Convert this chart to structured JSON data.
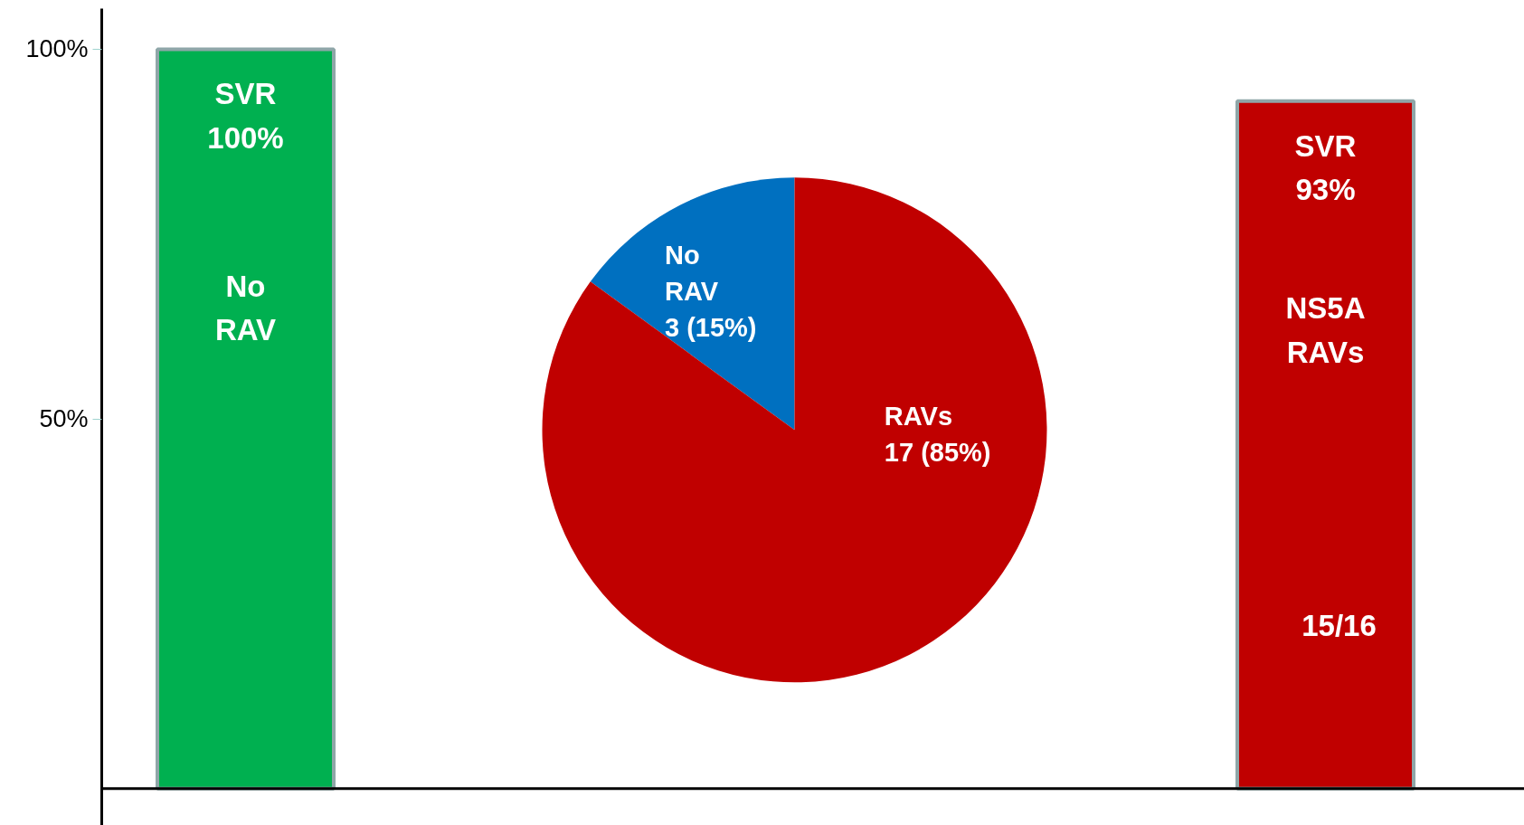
{
  "chart_data": [
    {
      "type": "bar",
      "categories": [
        null,
        null
      ],
      "values": [
        100,
        93
      ],
      "colors": [
        "#00b050",
        "#c00000"
      ],
      "value_labels": [
        "SVR\n100%",
        "SVR\n93%"
      ],
      "annotations": [
        "No\nRAV",
        "NS5A\nRAVs",
        "15/16"
      ],
      "ylim": [
        -5,
        105.5
      ],
      "yticks": [
        {
          "value": 50,
          "label": "50%"
        },
        {
          "value": 100,
          "label": "100%"
        }
      ],
      "grid": false
    },
    {
      "type": "pie",
      "categories": [
        "No\nRAV",
        "RAVs"
      ],
      "values": [
        3,
        17
      ],
      "colors": [
        "#0070c0",
        "#c00000"
      ],
      "value_labels": [
        "3 (15%)",
        "17 (85%)"
      ]
    }
  ]
}
